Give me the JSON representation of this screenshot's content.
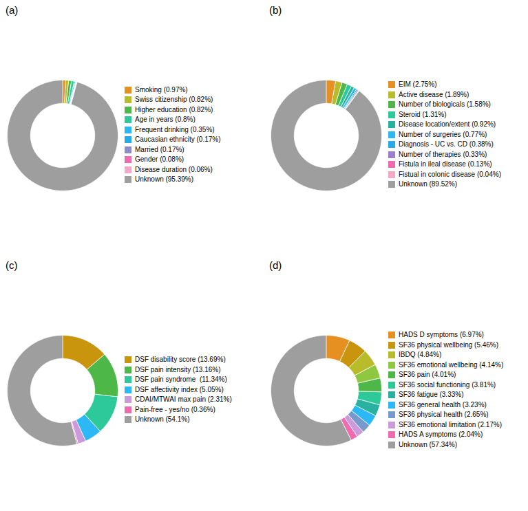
{
  "chart_data": [
    {
      "type": "donut",
      "title": "(a)",
      "categories": [
        "Smoking (0.97%)",
        "Swiss citizenship (0.82%)",
        "Higher education (0.82%)",
        "Age in years (0.8%)",
        "Frequent drinking (0.35%)",
        "Caucasian ethnicity (0.17%)",
        "Married (0.17%)",
        "Gender (0.08%)",
        "Disease duration (0.06%)",
        "Unknown (95.39%)"
      ],
      "values": [
        0.97,
        0.82,
        0.82,
        0.8,
        0.35,
        0.17,
        0.17,
        0.08,
        0.06,
        95.39
      ],
      "colors": [
        "#E59020",
        "#B8BB2A",
        "#4DB848",
        "#2DC99A",
        "#2BB8F5",
        "#27AAE8",
        "#8C8CCC",
        "#F06AB0",
        "#F4A8C8",
        "#9E9E9E"
      ],
      "legend": "right"
    },
    {
      "type": "donut",
      "title": "(b)",
      "categories": [
        "EIM (2.75%)",
        "Active disease (1.89%)",
        "Number of biologicals (1.58%)",
        "Steroid (1.31%)",
        "Disease location/extent (0.92%)",
        "Number of surgeries (0.77%)",
        "Diagnosis - UC vs. CD (0.38%)",
        "Number of therapies (0.33%)",
        "Fistula in ileal disease (0.13%)",
        "Fistual in colonic disease (0.04%)",
        "Unknown (89.52%)"
      ],
      "values": [
        2.75,
        1.89,
        1.58,
        1.31,
        0.92,
        0.77,
        0.38,
        0.33,
        0.13,
        0.04,
        89.52
      ],
      "colors": [
        "#E59020",
        "#B8BB2A",
        "#4DB848",
        "#2DC99A",
        "#28B0A0",
        "#2BB8F5",
        "#27AAE8",
        "#9B7FCC",
        "#F06AB0",
        "#F4A8C8",
        "#9E9E9E"
      ],
      "legend": "right"
    },
    {
      "type": "donut",
      "title": "(c)",
      "categories": [
        "DSF disability score (13.69%)",
        "DSF pain intensity (13.16%)",
        "DSF pain syndrome  (11.34%)",
        "DSF affectivity index (5.05%)",
        "CDAI/MTWAI max pain (2.31%)",
        "Pain-free - yes/no (0.36%)",
        "Unknown (54.1%)"
      ],
      "values": [
        13.69,
        13.16,
        11.34,
        5.05,
        2.31,
        0.36,
        54.1
      ],
      "colors": [
        "#C9950C",
        "#4DB848",
        "#2DC99A",
        "#2BB8F5",
        "#CC99DD",
        "#F06AB0",
        "#9E9E9E"
      ],
      "legend": "right"
    },
    {
      "type": "donut",
      "title": "(d)",
      "categories": [
        "HADS D symptoms (6.97%)",
        "SF36 physical wellbeing (5.46%)",
        "IBDQ (4.84%)",
        "SF36 emotional wellbeing (4.14%)",
        "SF36 pain (4.01%)",
        "SF36 social functioning (3.81%)",
        "SF36 fatigue (3.33%)",
        "SF36 general health (3.23%)",
        "SF36 physical health (2.65%)",
        "SF36 emotional limitation (2.17%)",
        "HADS A symptoms (2.04%)",
        "Unknown (57.34%)"
      ],
      "values": [
        6.97,
        5.46,
        4.84,
        4.14,
        4.01,
        3.81,
        3.33,
        3.23,
        2.65,
        2.17,
        2.04,
        57.34
      ],
      "colors": [
        "#E59020",
        "#C9950C",
        "#B8BB2A",
        "#8DC840",
        "#4DB848",
        "#2DC99A",
        "#28B0A0",
        "#2BB8F5",
        "#7799CC",
        "#CC99DD",
        "#F06AB0",
        "#9E9E9E"
      ],
      "legend": "right"
    }
  ]
}
